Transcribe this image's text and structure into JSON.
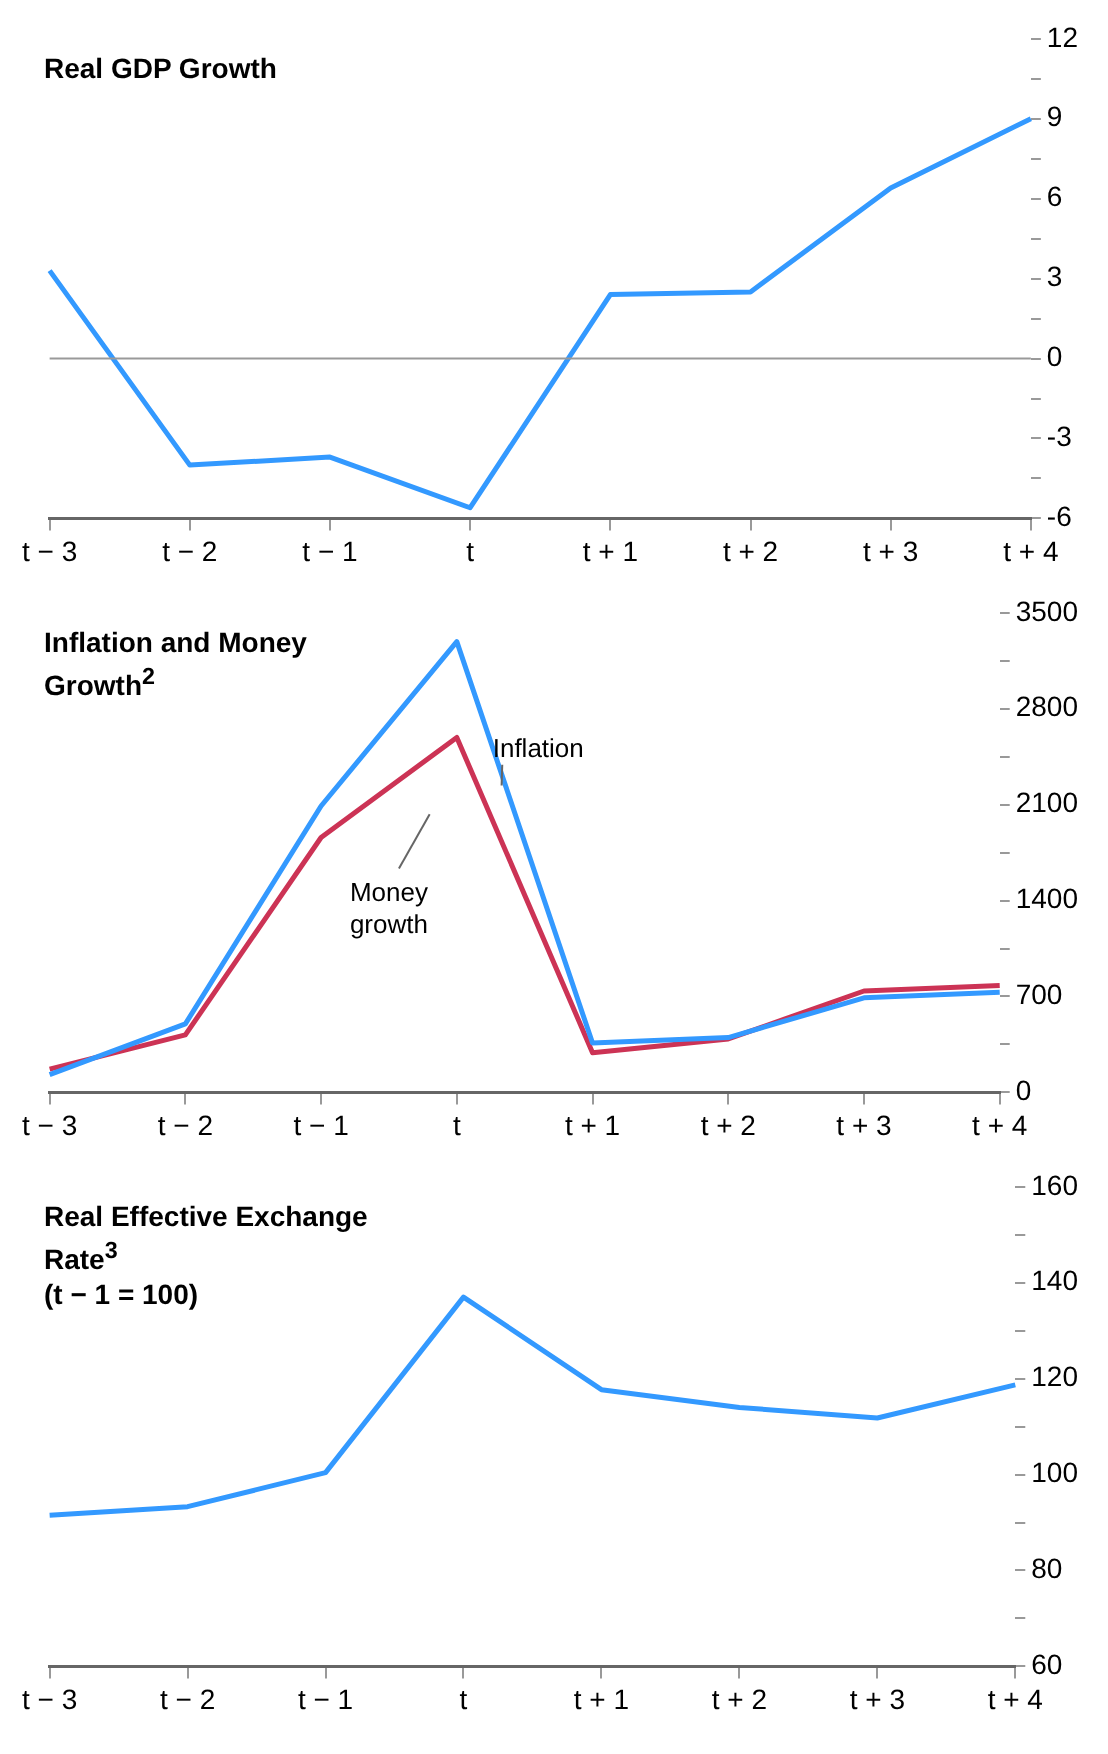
{
  "chart_data": [
    {
      "type": "line",
      "title": "Real GDP Growth",
      "categories": [
        "t − 3",
        "t − 2",
        "t − 1",
        "t",
        "t + 1",
        "t + 2",
        "t + 3",
        "t + 4"
      ],
      "series": [
        {
          "color": "#3399ff",
          "values": [
            3.3,
            -4.0,
            -3.7,
            -5.6,
            2.4,
            2.5,
            6.4,
            9.0
          ]
        }
      ],
      "ylim": [
        -6,
        12
      ],
      "yticks": [
        -6,
        {
          "value": -4.5,
          "label": null
        },
        -3,
        {
          "value": -1.5,
          "label": null
        },
        0,
        {
          "value": 1.5,
          "label": null
        },
        3,
        {
          "value": 4.5,
          "label": null
        },
        6,
        {
          "value": 7.5,
          "label": null
        },
        9,
        {
          "value": 10.5,
          "label": null
        },
        12
      ],
      "ref_lines": [
        {
          "axis": "y",
          "value": 0,
          "color": "#999999"
        }
      ],
      "legend": false,
      "grid": false
    },
    {
      "type": "line",
      "title": "Inflation and Money Growth$^{2}$",
      "categories": [
        "t − 3",
        "t − 2",
        "t − 1",
        "t",
        "t + 1",
        "t + 2",
        "t + 3",
        "t + 4"
      ],
      "series": [
        {
          "name": "Inflation",
          "color": "#3399ff",
          "values": [
            130,
            500,
            2090,
            3290,
            360,
            400,
            690,
            730
          ]
        },
        {
          "name": "Money growth",
          "color": "#cc3355",
          "values": [
            170,
            420,
            1860,
            2590,
            290,
            390,
            740,
            780
          ]
        }
      ],
      "ylim": [
        0,
        3500
      ],
      "yticks": [
        0,
        {
          "value": 350,
          "label": null
        },
        700,
        {
          "value": 1050,
          "label": null
        },
        1400,
        {
          "value": 1750,
          "label": null
        },
        2100,
        {
          "value": 2450,
          "label": null
        },
        2800,
        {
          "value": 3150,
          "label": null
        },
        3500
      ],
      "legend": false,
      "grid": false
    },
    {
      "type": "line",
      "title": "Real Effective Exchange Rate$^{3}$",
      "subtitle": "(t − 1 = 100)",
      "categories": [
        "t − 3",
        "t − 2",
        "t − 1",
        "t",
        "t + 1",
        "t + 2",
        "t + 3",
        "t + 4"
      ],
      "series": [
        {
          "color": "#3399ff",
          "values": [
            91.5,
            93.3,
            100.4,
            137,
            117.7,
            114,
            111.8,
            118.7
          ]
        }
      ],
      "ylim": [
        60,
        160
      ],
      "yticks": [
        60,
        {
          "value": 70,
          "label": null
        },
        80,
        {
          "value": 90,
          "label": null
        },
        100,
        {
          "value": 110,
          "label": null
        },
        120,
        {
          "value": 130,
          "label": null
        },
        140,
        {
          "value": 150,
          "label": null
        },
        160
      ],
      "legend": false,
      "grid": false
    }
  ]
}
